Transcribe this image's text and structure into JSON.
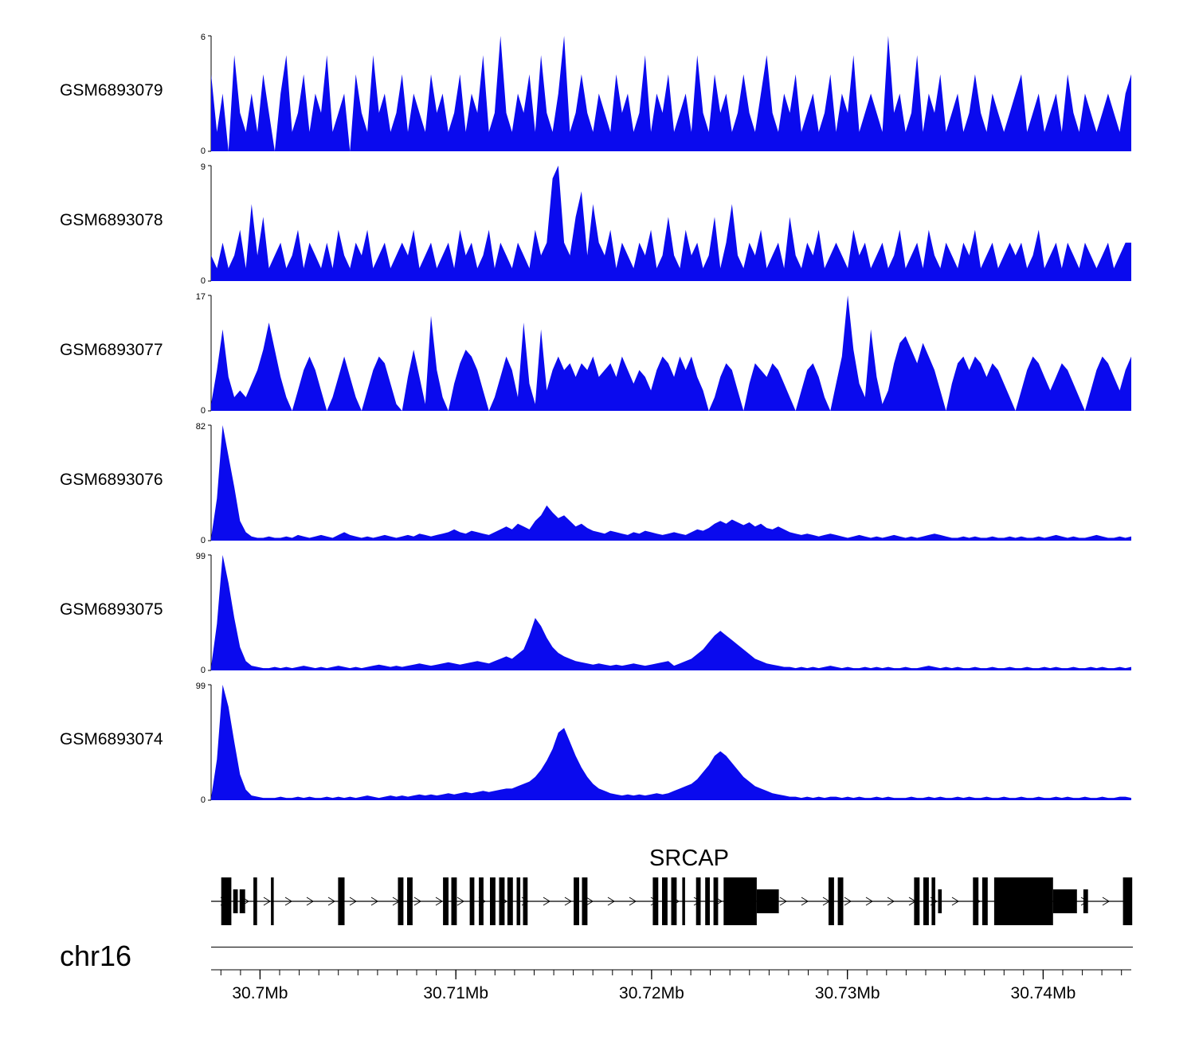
{
  "chart_data": {
    "type": "area",
    "title": "",
    "color": "#0a0aee",
    "region": {
      "chromosome": "chr16",
      "start_mb": 30.6975,
      "end_mb": 30.7445,
      "unit": "Mb"
    },
    "tracks": [
      {
        "label": "GSM6893079",
        "ymin": 0,
        "ymax": 6,
        "values": [
          4,
          1,
          3,
          0,
          5,
          2,
          1,
          3,
          1,
          4,
          2,
          0,
          3,
          5,
          1,
          2,
          4,
          1,
          3,
          2,
          5,
          1,
          2,
          3,
          0,
          4,
          2,
          1,
          5,
          2,
          3,
          1,
          2,
          4,
          1,
          3,
          2,
          1,
          4,
          2,
          3,
          1,
          2,
          4,
          1,
          3,
          2,
          5,
          1,
          2,
          6,
          2,
          1,
          3,
          2,
          4,
          1,
          5,
          2,
          1,
          3,
          6,
          1,
          2,
          4,
          2,
          1,
          3,
          2,
          1,
          4,
          2,
          3,
          1,
          2,
          5,
          1,
          3,
          2,
          4,
          1,
          2,
          3,
          1,
          5,
          2,
          1,
          4,
          2,
          3,
          1,
          2,
          4,
          2,
          1,
          3,
          5,
          2,
          1,
          3,
          2,
          4,
          1,
          2,
          3,
          1,
          2,
          4,
          1,
          3,
          2,
          5,
          1,
          2,
          3,
          2,
          1,
          6,
          2,
          3,
          1,
          2,
          5,
          1,
          3,
          2,
          4,
          1,
          2,
          3,
          1,
          2,
          4,
          2,
          1,
          3,
          2,
          1,
          2,
          3,
          4,
          1,
          2,
          3,
          1,
          2,
          3,
          1,
          4,
          2,
          1,
          3,
          2,
          1,
          2,
          3,
          2,
          1,
          3,
          4
        ]
      },
      {
        "label": "GSM6893078",
        "ymin": 0,
        "ymax": 9,
        "values": [
          2,
          1,
          3,
          1,
          2,
          4,
          1,
          6,
          2,
          5,
          1,
          2,
          3,
          1,
          2,
          4,
          1,
          3,
          2,
          1,
          3,
          1,
          4,
          2,
          1,
          3,
          2,
          4,
          1,
          2,
          3,
          1,
          2,
          3,
          2,
          4,
          1,
          2,
          3,
          1,
          2,
          3,
          1,
          4,
          2,
          3,
          1,
          2,
          4,
          1,
          3,
          2,
          1,
          3,
          2,
          1,
          4,
          2,
          3,
          8,
          9,
          3,
          2,
          5,
          7,
          2,
          6,
          3,
          2,
          4,
          1,
          3,
          2,
          1,
          3,
          2,
          4,
          1,
          2,
          5,
          2,
          1,
          4,
          2,
          3,
          1,
          2,
          5,
          1,
          3,
          6,
          2,
          1,
          3,
          2,
          4,
          1,
          2,
          3,
          1,
          5,
          2,
          1,
          3,
          2,
          4,
          1,
          2,
          3,
          2,
          1,
          4,
          2,
          3,
          1,
          2,
          3,
          1,
          2,
          4,
          1,
          2,
          3,
          1,
          4,
          2,
          1,
          3,
          2,
          1,
          3,
          2,
          4,
          1,
          2,
          3,
          1,
          2,
          3,
          2,
          3,
          1,
          2,
          4,
          1,
          2,
          3,
          1,
          3,
          2,
          1,
          3,
          2,
          1,
          2,
          3,
          1,
          2,
          3,
          3
        ]
      },
      {
        "label": "GSM6893077",
        "ymin": 0,
        "ymax": 17,
        "values": [
          1,
          6,
          12,
          5,
          2,
          3,
          2,
          4,
          6,
          9,
          13,
          9,
          5,
          2,
          0,
          3,
          6,
          8,
          6,
          3,
          0,
          2,
          5,
          8,
          5,
          2,
          0,
          3,
          6,
          8,
          7,
          4,
          1,
          0,
          5,
          9,
          5,
          1,
          14,
          6,
          2,
          0,
          4,
          7,
          9,
          8,
          6,
          3,
          0,
          2,
          5,
          8,
          6,
          2,
          13,
          4,
          1,
          12,
          3,
          6,
          8,
          6,
          7,
          5,
          7,
          6,
          8,
          5,
          6,
          7,
          5,
          8,
          6,
          4,
          6,
          5,
          3,
          6,
          8,
          7,
          5,
          8,
          6,
          8,
          5,
          3,
          0,
          2,
          5,
          7,
          6,
          3,
          0,
          4,
          7,
          6,
          5,
          7,
          6,
          4,
          2,
          0,
          3,
          6,
          7,
          5,
          2,
          0,
          4,
          8,
          17,
          9,
          4,
          2,
          12,
          5,
          1,
          3,
          7,
          10,
          11,
          9,
          7,
          10,
          8,
          6,
          3,
          0,
          4,
          7,
          8,
          6,
          8,
          7,
          5,
          7,
          6,
          4,
          2,
          0,
          3,
          6,
          8,
          7,
          5,
          3,
          5,
          7,
          6,
          4,
          2,
          0,
          3,
          6,
          8,
          7,
          5,
          3,
          6,
          8
        ]
      },
      {
        "label": "GSM6893076",
        "ymin": 0,
        "ymax": 82,
        "values": [
          2,
          30,
          82,
          60,
          38,
          14,
          6,
          3,
          2,
          2,
          3,
          2,
          2,
          3,
          2,
          4,
          3,
          2,
          3,
          4,
          3,
          2,
          4,
          6,
          4,
          3,
          2,
          3,
          2,
          3,
          4,
          3,
          2,
          3,
          4,
          3,
          5,
          4,
          3,
          4,
          5,
          6,
          8,
          6,
          5,
          7,
          6,
          5,
          4,
          6,
          8,
          10,
          8,
          12,
          10,
          8,
          14,
          18,
          25,
          20,
          16,
          18,
          14,
          10,
          12,
          9,
          7,
          6,
          5,
          7,
          6,
          5,
          4,
          6,
          5,
          7,
          6,
          5,
          4,
          5,
          6,
          5,
          4,
          6,
          8,
          7,
          9,
          12,
          14,
          12,
          15,
          13,
          11,
          13,
          10,
          12,
          9,
          8,
          10,
          8,
          6,
          5,
          4,
          5,
          4,
          3,
          4,
          5,
          4,
          3,
          2,
          3,
          4,
          3,
          2,
          3,
          2,
          3,
          4,
          3,
          2,
          3,
          2,
          3,
          4,
          5,
          4,
          3,
          2,
          2,
          3,
          2,
          3,
          2,
          2,
          3,
          2,
          2,
          3,
          2,
          3,
          2,
          2,
          3,
          2,
          3,
          4,
          3,
          2,
          3,
          2,
          2,
          3,
          4,
          3,
          2,
          2,
          3,
          2,
          3
        ]
      },
      {
        "label": "GSM6893075",
        "ymin": 0,
        "ymax": 99,
        "values": [
          3,
          40,
          99,
          75,
          45,
          20,
          8,
          4,
          3,
          2,
          2,
          3,
          2,
          3,
          2,
          3,
          4,
          3,
          2,
          3,
          2,
          3,
          4,
          3,
          2,
          3,
          2,
          3,
          4,
          5,
          4,
          3,
          4,
          3,
          4,
          5,
          6,
          5,
          4,
          5,
          6,
          7,
          6,
          5,
          6,
          7,
          8,
          7,
          6,
          8,
          10,
          12,
          10,
          14,
          18,
          30,
          45,
          38,
          28,
          20,
          15,
          12,
          10,
          8,
          7,
          6,
          5,
          6,
          5,
          4,
          5,
          4,
          5,
          6,
          5,
          4,
          5,
          6,
          7,
          8,
          4,
          6,
          8,
          10,
          14,
          18,
          24,
          30,
          34,
          30,
          26,
          22,
          18,
          14,
          10,
          8,
          6,
          5,
          4,
          3,
          3,
          2,
          3,
          2,
          3,
          2,
          3,
          4,
          3,
          2,
          3,
          2,
          2,
          3,
          2,
          3,
          2,
          3,
          2,
          2,
          3,
          2,
          2,
          3,
          4,
          3,
          2,
          3,
          2,
          3,
          2,
          2,
          3,
          2,
          2,
          3,
          2,
          2,
          3,
          2,
          2,
          3,
          2,
          2,
          3,
          2,
          3,
          2,
          2,
          3,
          2,
          2,
          3,
          2,
          3,
          2,
          2,
          3,
          2,
          3
        ]
      },
      {
        "label": "GSM6893074",
        "ymin": 0,
        "ymax": 99,
        "values": [
          2,
          35,
          99,
          80,
          50,
          22,
          9,
          4,
          3,
          2,
          2,
          2,
          3,
          2,
          2,
          3,
          2,
          3,
          2,
          2,
          3,
          2,
          3,
          2,
          3,
          2,
          3,
          4,
          3,
          2,
          3,
          4,
          3,
          4,
          3,
          4,
          5,
          4,
          5,
          4,
          5,
          6,
          5,
          6,
          7,
          6,
          7,
          8,
          7,
          8,
          9,
          10,
          10,
          12,
          14,
          16,
          20,
          26,
          34,
          44,
          58,
          62,
          50,
          38,
          28,
          20,
          14,
          10,
          8,
          6,
          5,
          4,
          5,
          4,
          5,
          4,
          5,
          6,
          5,
          6,
          8,
          10,
          12,
          14,
          18,
          24,
          30,
          38,
          42,
          38,
          32,
          26,
          20,
          16,
          12,
          10,
          8,
          6,
          5,
          4,
          3,
          3,
          2,
          3,
          2,
          3,
          2,
          3,
          3,
          2,
          3,
          2,
          3,
          2,
          2,
          3,
          2,
          3,
          2,
          2,
          2,
          3,
          2,
          2,
          3,
          2,
          3,
          2,
          2,
          3,
          2,
          3,
          2,
          2,
          3,
          2,
          2,
          3,
          2,
          2,
          3,
          2,
          2,
          3,
          2,
          2,
          3,
          2,
          3,
          2,
          2,
          3,
          2,
          2,
          3,
          2,
          2,
          3,
          3,
          2
        ]
      }
    ]
  },
  "gene": {
    "name": "SRCAP",
    "strand": "+",
    "exons": [
      {
        "x": 0.011,
        "w": 0.011,
        "h": "tall"
      },
      {
        "x": 0.024,
        "w": 0.005,
        "h": "short"
      },
      {
        "x": 0.031,
        "w": 0.006,
        "h": "short"
      },
      {
        "x": 0.046,
        "w": 0.004,
        "h": "tall"
      },
      {
        "x": 0.065,
        "w": 0.003,
        "h": "tall"
      },
      {
        "x": 0.138,
        "w": 0.007,
        "h": "tall"
      },
      {
        "x": 0.203,
        "w": 0.006,
        "h": "tall"
      },
      {
        "x": 0.213,
        "w": 0.006,
        "h": "tall"
      },
      {
        "x": 0.252,
        "w": 0.006,
        "h": "tall"
      },
      {
        "x": 0.261,
        "w": 0.006,
        "h": "tall"
      },
      {
        "x": 0.281,
        "w": 0.005,
        "h": "tall"
      },
      {
        "x": 0.291,
        "w": 0.005,
        "h": "tall"
      },
      {
        "x": 0.303,
        "w": 0.006,
        "h": "tall"
      },
      {
        "x": 0.313,
        "w": 0.006,
        "h": "tall"
      },
      {
        "x": 0.322,
        "w": 0.006,
        "h": "tall"
      },
      {
        "x": 0.332,
        "w": 0.004,
        "h": "tall"
      },
      {
        "x": 0.339,
        "w": 0.005,
        "h": "tall"
      },
      {
        "x": 0.394,
        "w": 0.006,
        "h": "tall"
      },
      {
        "x": 0.403,
        "w": 0.006,
        "h": "tall"
      },
      {
        "x": 0.48,
        "w": 0.006,
        "h": "tall"
      },
      {
        "x": 0.49,
        "w": 0.006,
        "h": "tall"
      },
      {
        "x": 0.5,
        "w": 0.006,
        "h": "tall"
      },
      {
        "x": 0.512,
        "w": 0.003,
        "h": "tall"
      },
      {
        "x": 0.527,
        "w": 0.005,
        "h": "tall"
      },
      {
        "x": 0.537,
        "w": 0.005,
        "h": "tall"
      },
      {
        "x": 0.546,
        "w": 0.005,
        "h": "tall"
      },
      {
        "x": 0.557,
        "w": 0.036,
        "h": "tall"
      },
      {
        "x": 0.593,
        "w": 0.024,
        "h": "short"
      },
      {
        "x": 0.671,
        "w": 0.006,
        "h": "tall"
      },
      {
        "x": 0.681,
        "w": 0.006,
        "h": "tall"
      },
      {
        "x": 0.764,
        "w": 0.006,
        "h": "tall"
      },
      {
        "x": 0.774,
        "w": 0.006,
        "h": "tall"
      },
      {
        "x": 0.783,
        "w": 0.004,
        "h": "tall"
      },
      {
        "x": 0.79,
        "w": 0.004,
        "h": "short"
      },
      {
        "x": 0.828,
        "w": 0.006,
        "h": "tall"
      },
      {
        "x": 0.838,
        "w": 0.006,
        "h": "tall"
      },
      {
        "x": 0.851,
        "w": 0.064,
        "h": "tall"
      },
      {
        "x": 0.915,
        "w": 0.026,
        "h": "short"
      },
      {
        "x": 0.948,
        "w": 0.005,
        "h": "short"
      },
      {
        "x": 0.991,
        "w": 0.01,
        "h": "tall"
      }
    ]
  },
  "axis": {
    "chromosome": "chr16",
    "minor_tick_interval_mb": 0.001,
    "major_ticks": [
      {
        "mb": 30.7,
        "label": "30.7Mb"
      },
      {
        "mb": 30.71,
        "label": "30.71Mb"
      },
      {
        "mb": 30.72,
        "label": "30.72Mb"
      },
      {
        "mb": 30.73,
        "label": "30.73Mb"
      },
      {
        "mb": 30.74,
        "label": "30.74Mb"
      }
    ]
  }
}
